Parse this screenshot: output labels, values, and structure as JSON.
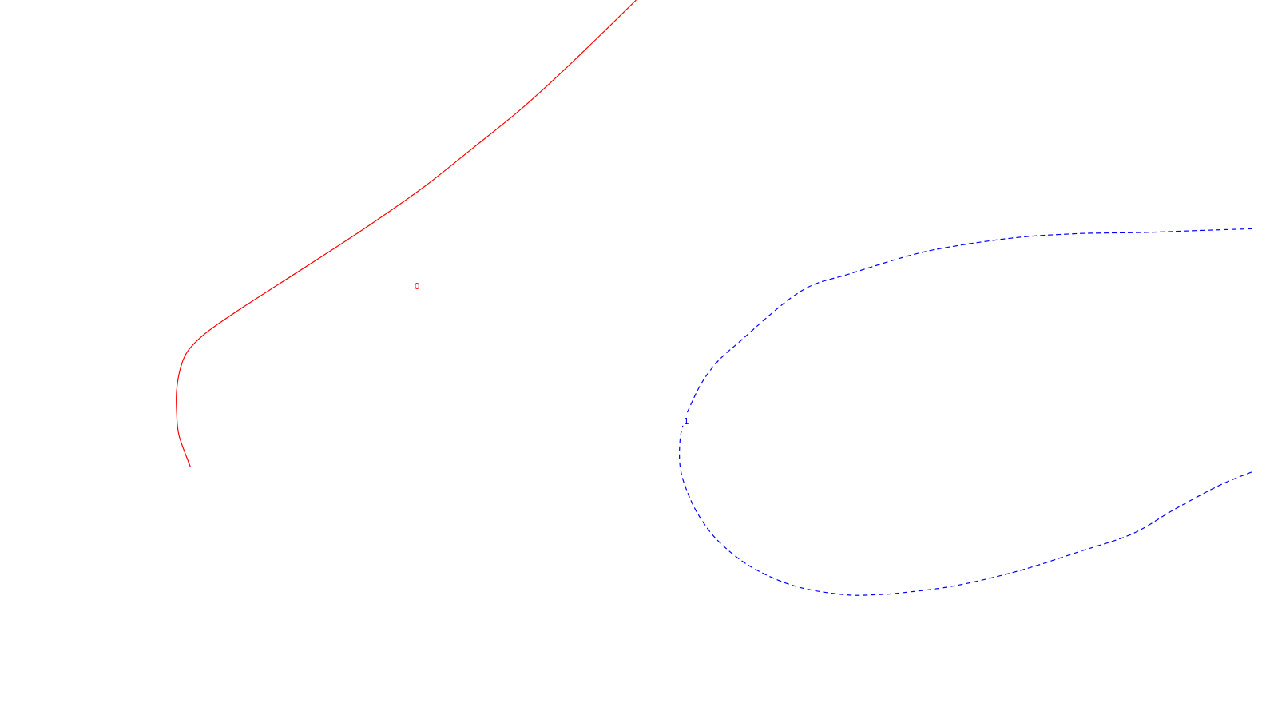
{
  "chart_data": {
    "type": "contour",
    "title": "",
    "xlabel": "",
    "ylabel": "",
    "grid": false,
    "legend": "none",
    "series": [
      {
        "label": "0",
        "color": "#ff0000",
        "line_style": "solid",
        "points": [
          [
            0.508,
            1.0
          ],
          [
            0.478,
            0.948
          ],
          [
            0.448,
            0.897
          ],
          [
            0.415,
            0.844
          ],
          [
            0.378,
            0.791
          ],
          [
            0.339,
            0.736
          ],
          [
            0.299,
            0.686
          ],
          [
            0.258,
            0.638
          ],
          [
            0.222,
            0.597
          ],
          [
            0.188,
            0.558
          ],
          [
            0.164,
            0.528
          ],
          [
            0.15,
            0.503
          ],
          [
            0.144,
            0.478
          ],
          [
            0.141,
            0.447
          ],
          [
            0.141,
            0.417
          ],
          [
            0.143,
            0.383
          ],
          [
            0.152,
            0.339
          ]
        ]
      },
      {
        "label": "1",
        "color": "#0000ff",
        "line_style": "dashed",
        "points": [
          [
            1.0,
            0.676
          ],
          [
            0.964,
            0.674
          ],
          [
            0.918,
            0.671
          ],
          [
            0.882,
            0.67
          ],
          [
            0.858,
            0.669
          ],
          [
            0.814,
            0.664
          ],
          [
            0.764,
            0.652
          ],
          [
            0.728,
            0.639
          ],
          [
            0.676,
            0.611
          ],
          [
            0.651,
            0.598
          ],
          [
            0.633,
            0.58
          ],
          [
            0.614,
            0.553
          ],
          [
            0.593,
            0.52
          ],
          [
            0.574,
            0.49
          ],
          [
            0.561,
            0.46
          ],
          [
            0.551,
            0.425
          ],
          [
            0.546,
            0.402
          ],
          [
            0.543,
            0.377
          ],
          [
            0.543,
            0.34
          ],
          [
            0.548,
            0.307
          ],
          [
            0.558,
            0.27
          ],
          [
            0.574,
            0.233
          ],
          [
            0.6,
            0.197
          ],
          [
            0.635,
            0.17
          ],
          [
            0.674,
            0.158
          ],
          [
            0.7,
            0.158
          ],
          [
            0.722,
            0.161
          ],
          [
            0.764,
            0.171
          ],
          [
            0.814,
            0.192
          ],
          [
            0.862,
            0.219
          ],
          [
            0.904,
            0.244
          ],
          [
            0.938,
            0.279
          ],
          [
            0.974,
            0.313
          ],
          [
            1.0,
            0.332
          ]
        ]
      }
    ],
    "labels": [
      {
        "text": "0",
        "series": 0,
        "at": [
          0.333,
          0.595
        ]
      },
      {
        "text": "1",
        "series": 1,
        "at": [
          0.548,
          0.404
        ]
      }
    ]
  }
}
